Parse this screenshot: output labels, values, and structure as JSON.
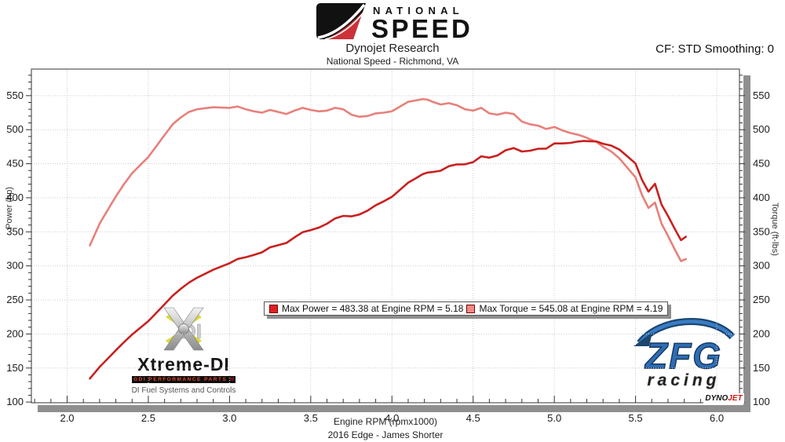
{
  "header": {
    "brand": {
      "line1": "NATIONAL",
      "line2": "SPEED"
    },
    "title": "Dynojet Research",
    "subtitle": "National Speed - Richmond, VA",
    "cf_text": "CF: STD Smoothing: 0"
  },
  "legend": {
    "power": {
      "label": "Max Power = 483.38 at Engine RPM = 5.18",
      "color": "#e02020"
    },
    "torque": {
      "label": "Max Torque = 545.08 at Engine RPM = 4.19",
      "color": "#f08a86"
    }
  },
  "footer": {
    "xlabel": "Engine RPM (rpmx1000)",
    "caption": "2016 Edge - James Shorter"
  },
  "watermarks": {
    "xtreme": {
      "name": "Xtreme-DI",
      "bar": "GDI PERFORMANCE PARTS",
      "slashes": "///",
      "tagline": "DI Fuel Systems and Controls",
      "monogram": "DI"
    },
    "zfg": {
      "line1": "ZFG",
      "line2": "racing"
    },
    "dynojet": {
      "part1": "DYNO",
      "part2": "JET"
    }
  },
  "chart_data": {
    "type": "line",
    "title": "Dynojet Research",
    "xlabel": "Engine RPM (rpmx1000)",
    "ylabel_left": "Power (hp)",
    "ylabel_right": "Torque (ft-lbs)",
    "xlim": [
      1.78,
      6.14
    ],
    "ylim": [
      99,
      589
    ],
    "x_ticks": [
      2.0,
      2.5,
      3.0,
      3.5,
      4.0,
      4.5,
      5.0,
      5.5,
      6.0
    ],
    "y_ticks": [
      100,
      150,
      200,
      250,
      300,
      350,
      400,
      450,
      500,
      550
    ],
    "grid": true,
    "grid_style": "dotted",
    "legend_position": "center",
    "colors": {
      "grid": "#cccccc",
      "frame": "#555555",
      "shadow": "#8f8f8f"
    },
    "series": [
      {
        "name": "Torque",
        "units": "ft-lbs",
        "axis": "right",
        "color": "#e8807a",
        "max": {
          "value": 545.08,
          "rpm": 4.19
        },
        "points": [
          [
            2.14,
            330
          ],
          [
            2.2,
            362
          ],
          [
            2.25,
            382
          ],
          [
            2.3,
            402
          ],
          [
            2.35,
            420
          ],
          [
            2.4,
            436
          ],
          [
            2.45,
            448
          ],
          [
            2.5,
            460
          ],
          [
            2.55,
            476
          ],
          [
            2.6,
            492
          ],
          [
            2.65,
            508
          ],
          [
            2.7,
            518
          ],
          [
            2.75,
            526
          ],
          [
            2.8,
            530
          ],
          [
            2.9,
            533
          ],
          [
            3.0,
            532
          ],
          [
            3.05,
            534
          ],
          [
            3.1,
            530
          ],
          [
            3.15,
            527
          ],
          [
            3.2,
            525
          ],
          [
            3.25,
            529
          ],
          [
            3.3,
            526
          ],
          [
            3.35,
            523
          ],
          [
            3.4,
            528
          ],
          [
            3.45,
            532
          ],
          [
            3.5,
            529
          ],
          [
            3.55,
            527
          ],
          [
            3.6,
            528
          ],
          [
            3.65,
            532
          ],
          [
            3.7,
            530
          ],
          [
            3.75,
            522
          ],
          [
            3.8,
            519
          ],
          [
            3.85,
            520
          ],
          [
            3.9,
            524
          ],
          [
            3.95,
            525
          ],
          [
            4.0,
            527
          ],
          [
            4.05,
            534
          ],
          [
            4.1,
            541
          ],
          [
            4.15,
            543
          ],
          [
            4.19,
            545.08
          ],
          [
            4.22,
            544
          ],
          [
            4.25,
            541
          ],
          [
            4.3,
            537
          ],
          [
            4.35,
            539
          ],
          [
            4.4,
            536
          ],
          [
            4.45,
            530
          ],
          [
            4.5,
            528
          ],
          [
            4.55,
            532
          ],
          [
            4.6,
            524
          ],
          [
            4.65,
            522
          ],
          [
            4.7,
            525
          ],
          [
            4.75,
            523
          ],
          [
            4.8,
            512
          ],
          [
            4.85,
            508
          ],
          [
            4.9,
            506
          ],
          [
            4.95,
            501
          ],
          [
            5.0,
            504
          ],
          [
            5.05,
            499
          ],
          [
            5.1,
            495
          ],
          [
            5.14,
            493
          ],
          [
            5.18,
            490
          ],
          [
            5.22,
            486
          ],
          [
            5.26,
            482
          ],
          [
            5.3,
            475
          ],
          [
            5.35,
            468
          ],
          [
            5.4,
            458
          ],
          [
            5.45,
            444
          ],
          [
            5.5,
            430
          ],
          [
            5.54,
            404
          ],
          [
            5.58,
            385
          ],
          [
            5.62,
            393
          ],
          [
            5.66,
            362
          ],
          [
            5.7,
            344
          ],
          [
            5.74,
            325
          ],
          [
            5.78,
            307
          ],
          [
            5.81,
            310
          ]
        ]
      },
      {
        "name": "Power",
        "units": "hp",
        "axis": "left",
        "color": "#c9201f",
        "max": {
          "value": 483.38,
          "rpm": 5.18
        },
        "points": [
          [
            2.14,
            134.5
          ],
          [
            2.2,
            151.6
          ],
          [
            2.25,
            163.7
          ],
          [
            2.3,
            176.0
          ],
          [
            2.35,
            187.9
          ],
          [
            2.4,
            199.2
          ],
          [
            2.45,
            209.0
          ],
          [
            2.5,
            218.9
          ],
          [
            2.55,
            231.1
          ],
          [
            2.6,
            243.6
          ],
          [
            2.65,
            256.3
          ],
          [
            2.7,
            266.3
          ],
          [
            2.75,
            275.4
          ],
          [
            2.8,
            282.6
          ],
          [
            2.9,
            294.3
          ],
          [
            3.0,
            303.9
          ],
          [
            3.05,
            310.1
          ],
          [
            3.1,
            312.8
          ],
          [
            3.15,
            316.1
          ],
          [
            3.2,
            319.9
          ],
          [
            3.25,
            327.3
          ],
          [
            3.3,
            330.5
          ],
          [
            3.35,
            333.6
          ],
          [
            3.4,
            341.8
          ],
          [
            3.45,
            349.4
          ],
          [
            3.5,
            352.5
          ],
          [
            3.55,
            356.2
          ],
          [
            3.6,
            361.9
          ],
          [
            3.65,
            369.7
          ],
          [
            3.7,
            373.4
          ],
          [
            3.75,
            372.7
          ],
          [
            3.8,
            375.5
          ],
          [
            3.85,
            381.1
          ],
          [
            3.9,
            389.1
          ],
          [
            3.95,
            394.8
          ],
          [
            4.0,
            401.4
          ],
          [
            4.05,
            411.8
          ],
          [
            4.1,
            422.3
          ],
          [
            4.15,
            429.1
          ],
          [
            4.19,
            434.9
          ],
          [
            4.22,
            437.1
          ],
          [
            4.25,
            437.8
          ],
          [
            4.3,
            439.7
          ],
          [
            4.35,
            446.4
          ],
          [
            4.4,
            449.0
          ],
          [
            4.45,
            449.1
          ],
          [
            4.5,
            452.4
          ],
          [
            4.55,
            460.9
          ],
          [
            4.6,
            459.0
          ],
          [
            4.65,
            462.2
          ],
          [
            4.7,
            469.8
          ],
          [
            4.75,
            473.0
          ],
          [
            4.8,
            467.9
          ],
          [
            4.85,
            469.1
          ],
          [
            4.9,
            472.0
          ],
          [
            4.95,
            472.2
          ],
          [
            5.0,
            479.8
          ],
          [
            5.05,
            479.8
          ],
          [
            5.1,
            480.6
          ],
          [
            5.14,
            482.5
          ],
          [
            5.18,
            483.38
          ],
          [
            5.22,
            483.0
          ],
          [
            5.26,
            482.7
          ],
          [
            5.3,
            479.3
          ],
          [
            5.35,
            476.7
          ],
          [
            5.4,
            470.9
          ],
          [
            5.45,
            460.7
          ],
          [
            5.5,
            450.3
          ],
          [
            5.54,
            426.1
          ],
          [
            5.58,
            409.0
          ],
          [
            5.62,
            420.5
          ],
          [
            5.66,
            390.1
          ],
          [
            5.7,
            373.3
          ],
          [
            5.74,
            355.2
          ],
          [
            5.78,
            337.8
          ],
          [
            5.81,
            342.9
          ]
        ]
      }
    ]
  }
}
